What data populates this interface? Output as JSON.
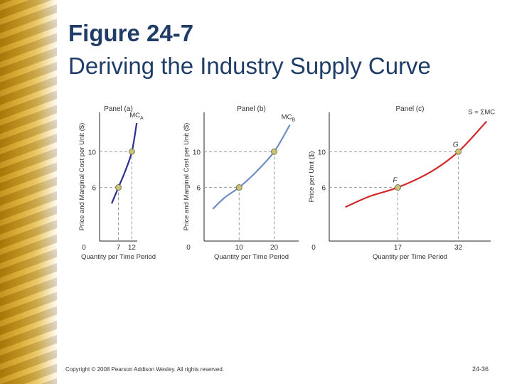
{
  "slide": {
    "title_line1": "Figure 24-7",
    "title_line2": "Deriving the Industry Supply Curve",
    "copyright": "Copyright © 2008 Pearson Addison Wesley. All rights reserved.",
    "page_number": "24-36"
  },
  "colors": {
    "title": "#1f3d66",
    "curve_a": "#2b2f8f",
    "curve_b": "#6f8fc4",
    "curve_c": "#d42a2a",
    "point": "#c9c27a"
  },
  "chart_data": [
    {
      "type": "line",
      "title": "Panel (a)",
      "xlabel": "Quantity per Time Period",
      "ylabel": "Price and Marginal Cost per Unit ($)",
      "origin_label": "0",
      "curve_label": "MC",
      "curve_label_sub": "A",
      "x_ticks": [
        7,
        12
      ],
      "y_ticks": [
        6,
        10
      ],
      "xlim": [
        0,
        14
      ],
      "ylim": [
        0,
        14.4
      ],
      "curve": [
        [
          4.5,
          4.2
        ],
        [
          7,
          6
        ],
        [
          9.5,
          7.8
        ],
        [
          12,
          10
        ],
        [
          13.8,
          13.2
        ]
      ],
      "points": [
        {
          "x": 7,
          "y": 6,
          "label": ""
        },
        {
          "x": 12,
          "y": 10,
          "label": ""
        }
      ]
    },
    {
      "type": "line",
      "title": "Panel (b)",
      "xlabel": "Quantity per Time Period",
      "ylabel": "Price and Marginal Cost per Unit ($)",
      "origin_label": "0",
      "curve_label": "MC",
      "curve_label_sub": "B",
      "x_ticks": [
        10,
        20
      ],
      "y_ticks": [
        6,
        10
      ],
      "xlim": [
        0,
        27
      ],
      "ylim": [
        0,
        14.4
      ],
      "curve": [
        [
          2.5,
          3.6
        ],
        [
          6,
          4.9
        ],
        [
          10,
          6
        ],
        [
          15,
          7.8
        ],
        [
          20,
          10
        ],
        [
          24.5,
          13
        ]
      ],
      "points": [
        {
          "x": 10,
          "y": 6,
          "label": ""
        },
        {
          "x": 20,
          "y": 10,
          "label": ""
        }
      ]
    },
    {
      "type": "line",
      "title": "Panel (c)",
      "xlabel": "Quantity per Time Period",
      "ylabel": "Price per Unit ($)",
      "origin_label": "0",
      "curve_label": "S = ΣMC",
      "x_ticks": [
        17,
        32
      ],
      "y_ticks": [
        6,
        10
      ],
      "xlim": [
        0,
        40
      ],
      "ylim": [
        0,
        14.4
      ],
      "curve": [
        [
          4,
          3.8
        ],
        [
          10,
          5
        ],
        [
          17,
          6
        ],
        [
          25,
          7.7
        ],
        [
          32,
          10
        ],
        [
          39,
          13.4
        ]
      ],
      "points": [
        {
          "x": 17,
          "y": 6,
          "label": "F"
        },
        {
          "x": 32,
          "y": 10,
          "label": "G"
        }
      ]
    }
  ]
}
